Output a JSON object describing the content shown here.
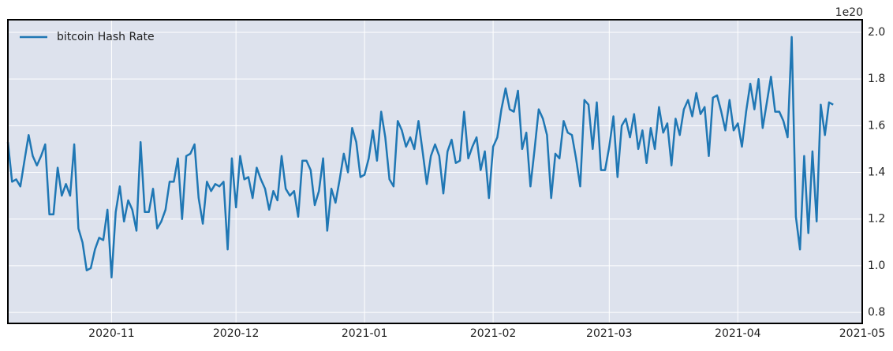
{
  "chart_data": {
    "type": "line",
    "series": [
      {
        "name": "bitcoin Hash Rate",
        "color": "#1f77b4",
        "values": [
          1.53,
          1.36,
          1.37,
          1.34,
          1.45,
          1.56,
          1.47,
          1.43,
          1.47,
          1.52,
          1.22,
          1.22,
          1.42,
          1.3,
          1.35,
          1.3,
          1.52,
          1.16,
          1.1,
          0.98,
          0.99,
          1.07,
          1.12,
          1.11,
          1.24,
          0.95,
          1.23,
          1.34,
          1.19,
          1.28,
          1.24,
          1.15,
          1.53,
          1.23,
          1.23,
          1.33,
          1.16,
          1.19,
          1.24,
          1.36,
          1.36,
          1.46,
          1.2,
          1.47,
          1.48,
          1.52,
          1.29,
          1.18,
          1.36,
          1.32,
          1.35,
          1.34,
          1.36,
          1.07,
          1.46,
          1.25,
          1.47,
          1.37,
          1.38,
          1.29,
          1.42,
          1.37,
          1.33,
          1.24,
          1.32,
          1.28,
          1.47,
          1.33,
          1.3,
          1.32,
          1.21,
          1.45,
          1.45,
          1.41,
          1.26,
          1.32,
          1.46,
          1.15,
          1.33,
          1.27,
          1.37,
          1.48,
          1.4,
          1.59,
          1.53,
          1.38,
          1.39,
          1.46,
          1.58,
          1.45,
          1.66,
          1.55,
          1.37,
          1.34,
          1.62,
          1.58,
          1.51,
          1.55,
          1.5,
          1.62,
          1.49,
          1.35,
          1.47,
          1.52,
          1.47,
          1.31,
          1.49,
          1.54,
          1.44,
          1.45,
          1.66,
          1.46,
          1.51,
          1.55,
          1.41,
          1.49,
          1.29,
          1.51,
          1.55,
          1.67,
          1.76,
          1.67,
          1.66,
          1.75,
          1.5,
          1.57,
          1.34,
          1.5,
          1.67,
          1.63,
          1.56,
          1.29,
          1.48,
          1.46,
          1.62,
          1.57,
          1.56,
          1.46,
          1.34,
          1.71,
          1.69,
          1.5,
          1.7,
          1.41,
          1.41,
          1.51,
          1.64,
          1.38,
          1.6,
          1.63,
          1.55,
          1.65,
          1.5,
          1.58,
          1.44,
          1.59,
          1.5,
          1.68,
          1.57,
          1.61,
          1.43,
          1.63,
          1.56,
          1.67,
          1.71,
          1.64,
          1.74,
          1.65,
          1.68,
          1.47,
          1.72,
          1.73,
          1.66,
          1.58,
          1.71,
          1.58,
          1.61,
          1.51,
          1.66,
          1.78,
          1.67,
          1.8,
          1.59,
          1.7,
          1.81,
          1.66,
          1.66,
          1.62,
          1.55,
          1.98,
          1.21,
          1.07,
          1.47,
          1.14,
          1.49,
          1.19,
          1.69,
          1.56,
          1.7,
          1.69
        ]
      }
    ],
    "xlim": [
      0,
      206
    ],
    "xticks": [
      {
        "value": 25,
        "label": "2020-11"
      },
      {
        "value": 55,
        "label": "2020-12"
      },
      {
        "value": 86,
        "label": "2021-01"
      },
      {
        "value": 117,
        "label": "2021-02"
      },
      {
        "value": 145,
        "label": "2021-03"
      },
      {
        "value": 176,
        "label": "2021-04"
      },
      {
        "value": 206,
        "label": "2021-05"
      }
    ],
    "ylim": [
      0.753,
      2.054
    ],
    "yticks": [
      0.8,
      {
        "value": 1,
        "label": "1.0"
      },
      1.2,
      1.4,
      1.6,
      1.8,
      {
        "value": 2,
        "label": "2.0"
      }
    ],
    "y_offset_label": "1e20",
    "grid": true,
    "legend": "upper left"
  }
}
